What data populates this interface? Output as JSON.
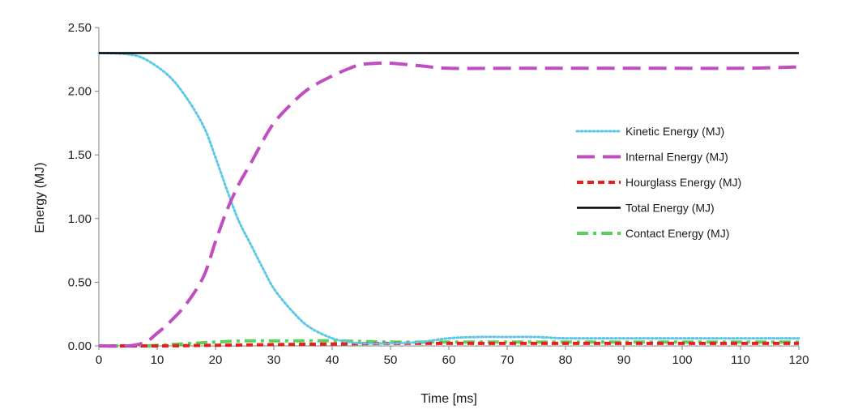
{
  "chart_data": {
    "type": "line",
    "title": "",
    "xlabel": "Time [ms]",
    "ylabel": "Energy (MJ)",
    "xlim": [
      0,
      120
    ],
    "ylim": [
      0,
      2.5
    ],
    "xticks": [
      0,
      10,
      20,
      30,
      40,
      50,
      60,
      70,
      80,
      90,
      100,
      110,
      120
    ],
    "yticks": [
      0,
      0.5,
      1.0,
      1.5,
      2.0,
      2.5
    ],
    "xtick_labels": [
      "0",
      "10",
      "20",
      "30",
      "40",
      "50",
      "60",
      "70",
      "80",
      "90",
      "100",
      "110",
      "120"
    ],
    "ytick_labels": [
      "0.00",
      "0.50",
      "1.00",
      "1.50",
      "2.00",
      "2.50"
    ],
    "grid": false,
    "legend_position": "right",
    "series": [
      {
        "name": "Kinetic Energy (MJ)",
        "color": "#5bc8e8",
        "dash": "dotted",
        "x": [
          0,
          5,
          8,
          12,
          15,
          18,
          20,
          22,
          24,
          26,
          28,
          30,
          33,
          36,
          40,
          43,
          45,
          50,
          55,
          60,
          65,
          70,
          75,
          80,
          90,
          100,
          110,
          120
        ],
        "y": [
          2.3,
          2.29,
          2.25,
          2.12,
          1.95,
          1.72,
          1.48,
          1.22,
          0.98,
          0.8,
          0.62,
          0.45,
          0.28,
          0.15,
          0.06,
          0.03,
          0.02,
          0.02,
          0.03,
          0.06,
          0.07,
          0.07,
          0.07,
          0.06,
          0.06,
          0.06,
          0.06,
          0.06
        ]
      },
      {
        "name": "Internal Energy (MJ)",
        "color": "#c04ec0",
        "dash": "long-dash",
        "x": [
          0,
          5,
          8,
          10,
          12,
          15,
          18,
          20,
          22,
          24,
          26,
          28,
          30,
          33,
          36,
          40,
          43,
          45,
          48,
          50,
          55,
          60,
          70,
          80,
          90,
          100,
          110,
          120
        ],
        "y": [
          0,
          0,
          0.03,
          0.1,
          0.18,
          0.33,
          0.55,
          0.82,
          1.07,
          1.27,
          1.43,
          1.6,
          1.75,
          1.9,
          2.02,
          2.12,
          2.18,
          2.21,
          2.22,
          2.22,
          2.2,
          2.18,
          2.18,
          2.18,
          2.18,
          2.18,
          2.18,
          2.19
        ]
      },
      {
        "name": "Hourglass Energy (MJ)",
        "color": "#e8201c",
        "dash": "dashed",
        "x": [
          0,
          10,
          20,
          30,
          40,
          50,
          60,
          70,
          80,
          90,
          100,
          110,
          120
        ],
        "y": [
          0,
          0.0,
          0.005,
          0.01,
          0.015,
          0.02,
          0.02,
          0.02,
          0.02,
          0.02,
          0.02,
          0.02,
          0.02
        ]
      },
      {
        "name": "Total Energy (MJ)",
        "color": "#000000",
        "dash": "solid",
        "x": [
          0,
          10,
          20,
          30,
          40,
          50,
          60,
          70,
          80,
          90,
          100,
          110,
          120
        ],
        "y": [
          2.3,
          2.3,
          2.3,
          2.3,
          2.3,
          2.3,
          2.3,
          2.3,
          2.3,
          2.3,
          2.3,
          2.3,
          2.3
        ]
      },
      {
        "name": "Contact Energy (MJ)",
        "color": "#5cd05c",
        "dash": "dash-dot",
        "x": [
          0,
          8,
          12,
          16,
          20,
          25,
          30,
          35,
          40,
          45,
          50,
          60,
          70,
          80,
          90,
          100,
          110,
          120
        ],
        "y": [
          0,
          0.0,
          0.01,
          0.02,
          0.03,
          0.04,
          0.04,
          0.04,
          0.04,
          0.035,
          0.03,
          0.03,
          0.03,
          0.03,
          0.03,
          0.03,
          0.03,
          0.03
        ]
      }
    ]
  }
}
